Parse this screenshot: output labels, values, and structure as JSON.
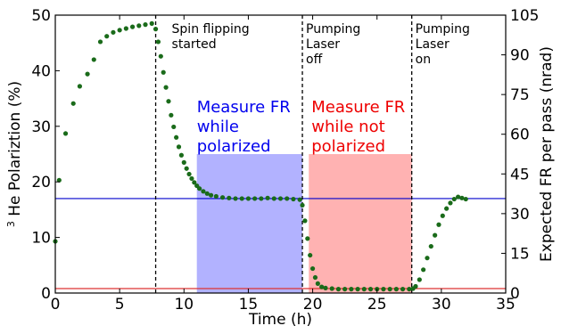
{
  "chart_data": {
    "type": "scatter",
    "xlabel": "Time (h)",
    "ylabel_prefix": "3",
    "ylabel": " He Polariztion (%)",
    "ylabel_right": "Expected FR per pass (nrad)",
    "xlim": [
      0,
      35
    ],
    "ylim": [
      0,
      50
    ],
    "ylim_right": [
      0,
      105
    ],
    "x_ticks": [
      "0",
      "5",
      "10",
      "15",
      "20",
      "25",
      "30",
      "35"
    ],
    "x_tick_values": [
      0,
      5,
      10,
      15,
      20,
      25,
      30,
      35
    ],
    "y_ticks": [
      "0",
      "10",
      "20",
      "30",
      "40",
      "50"
    ],
    "y_tick_values": [
      0,
      10,
      20,
      30,
      40,
      50
    ],
    "y_right_ticks": [
      "0",
      "15",
      "30",
      "45",
      "60",
      "75",
      "90",
      "105"
    ],
    "y_right_tick_values": [
      0,
      15,
      30,
      45,
      60,
      75,
      90,
      105
    ],
    "colors": {
      "points": "#1a6b1a",
      "blue_line": "#0000cc",
      "red_line": "#dd3333",
      "blue_region": "#aaaaff",
      "red_region": "#ffaaaa",
      "blue_text": "#0000ee",
      "red_text": "#ee0000"
    },
    "hlines": [
      {
        "name": "polarized-level",
        "y": 17.0,
        "color": "#0000cc"
      },
      {
        "name": "unpolarized-level",
        "y": 0.8,
        "color": "#dd3333"
      }
    ],
    "vlines": [
      {
        "x": 7.8,
        "label": [
          "Spin flipping",
          "started"
        ]
      },
      {
        "x": 19.2,
        "label": [
          "Pumping",
          "Laser",
          "off"
        ]
      },
      {
        "x": 27.7,
        "label": [
          "Pumping",
          "Laser",
          "on"
        ]
      }
    ],
    "regions": [
      {
        "x0": 11.0,
        "x1": 19.2,
        "y0": 0,
        "y1": 25,
        "color": "#aaaaff",
        "text_color": "#0000ee",
        "label": [
          "Measure FR",
          "while",
          "polarized"
        ]
      },
      {
        "x0": 19.7,
        "x1": 27.7,
        "y0": 0,
        "y1": 25,
        "color": "#ffaaaa",
        "text_color": "#ee0000",
        "label": [
          "Measure FR",
          "while not",
          "polarized"
        ]
      }
    ],
    "series": [
      {
        "x": [
          0.0,
          0.3,
          0.8,
          1.4,
          1.9,
          2.5,
          3.0,
          3.5,
          4.0,
          4.5,
          5.0,
          5.5,
          6.0,
          6.5,
          7.0,
          7.5,
          7.8,
          8.0,
          8.2,
          8.4,
          8.6,
          8.8,
          9.0,
          9.2,
          9.4,
          9.6,
          9.8,
          10.0,
          10.2,
          10.4,
          10.6,
          10.8,
          11.0,
          11.2,
          11.5,
          11.8,
          12.1,
          12.5,
          13.0,
          13.5,
          14.0,
          14.5,
          15.0,
          15.5,
          16.0,
          16.5,
          17.0,
          17.5,
          18.0,
          18.5,
          19.0,
          19.2,
          19.4,
          19.6,
          19.8,
          20.0,
          20.2,
          20.4,
          20.7,
          21.0,
          21.5,
          22.0,
          22.5,
          23.0,
          23.5,
          24.0,
          24.5,
          25.0,
          25.5,
          26.0,
          26.5,
          27.0,
          27.5,
          27.8,
          28.0,
          28.3,
          28.6,
          28.9,
          29.2,
          29.5,
          29.8,
          30.1,
          30.4,
          30.7,
          31.0,
          31.3,
          31.6,
          31.9
        ],
        "y": [
          9.3,
          20.3,
          28.7,
          34.1,
          37.2,
          39.4,
          42.0,
          45.2,
          46.2,
          46.9,
          47.3,
          47.6,
          47.9,
          48.1,
          48.3,
          48.5,
          47.5,
          45.2,
          42.6,
          39.7,
          37.0,
          34.5,
          32.0,
          29.9,
          28.0,
          26.3,
          24.8,
          23.5,
          22.4,
          21.4,
          20.6,
          19.9,
          19.3,
          18.8,
          18.3,
          17.9,
          17.6,
          17.4,
          17.2,
          17.1,
          17.0,
          17.0,
          17.0,
          17.0,
          17.0,
          17.1,
          17.0,
          17.0,
          17.0,
          16.9,
          16.8,
          15.8,
          13.0,
          9.8,
          6.8,
          4.4,
          2.8,
          1.7,
          1.1,
          0.9,
          0.8,
          0.7,
          0.7,
          0.7,
          0.7,
          0.7,
          0.7,
          0.7,
          0.7,
          0.7,
          0.7,
          0.7,
          0.7,
          0.8,
          1.2,
          2.4,
          4.2,
          6.3,
          8.4,
          10.4,
          12.3,
          13.9,
          15.2,
          16.2,
          16.9,
          17.3,
          17.1,
          16.9
        ]
      }
    ]
  }
}
